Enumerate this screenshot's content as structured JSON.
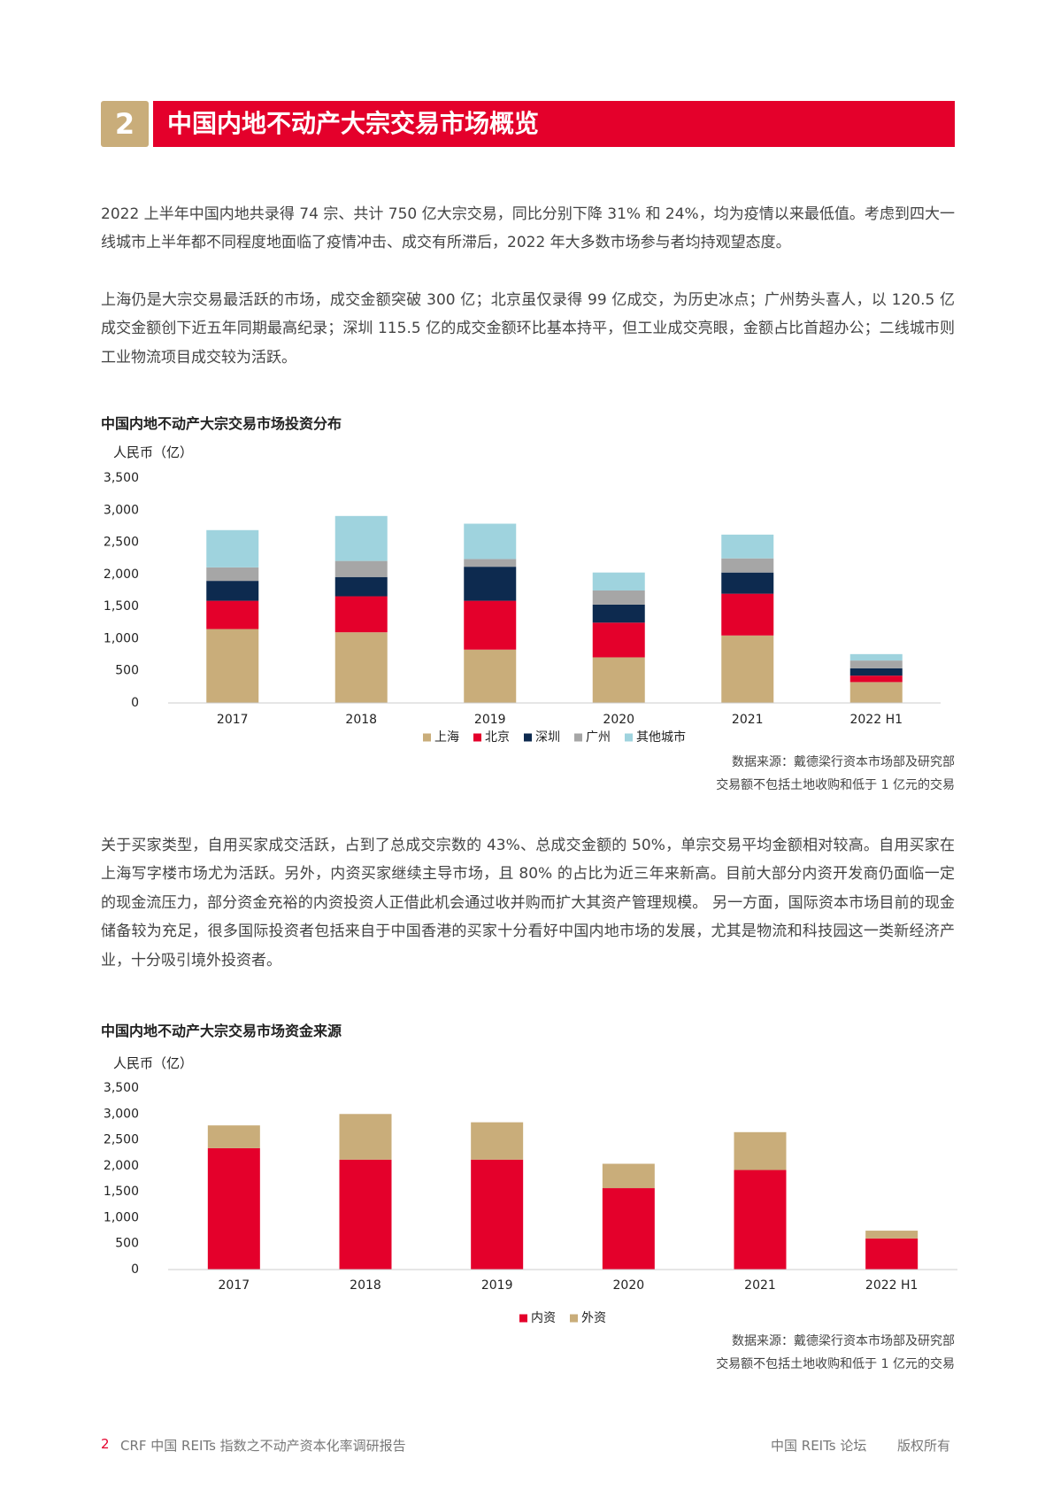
{
  "header": {
    "number": "2",
    "title": "中国内地不动产大宗交易市场概览"
  },
  "paragraphs": [
    "2022 上半年中国内地共录得 74 宗、共计 750 亿大宗交易，同比分别下降 31% 和 24%，均为疫情以来最低值。考虑到四大一线城市上半年都不同程度地面临了疫情冲击、成交有所滞后，2022 年大多数市场参与者均持观望态度。",
    "上海仍是大宗交易最活跃的市场，成交金额突破 300 亿；北京虽仅录得 99 亿成交，为历史冰点；广州势头喜人，以 120.5 亿成交金额创下近五年同期最高纪录；深圳 115.5 亿的成交金额环比基本持平，但工业成交亮眼，金额占比首超办公；二线城市则工业物流项目成交较为活跃。",
    "关于买家类型，自用买家成交活跃，占到了总成交宗数的 43%、总成交金额的 50%，单宗交易平均金额相对较高。自用买家在上海写字楼市场尤为活跃。另外，内资买家继续主导市场，且 80% 的占比为近三年来新高。目前大部分内资开发商仍面临一定的现金流压力，部分资金充裕的内资投资人正借此机会通过收并购而扩大其资产管理规模。 另一方面，国际资本市场目前的现金储备较为充足，很多国际投资者包括来自于中国香港的买家十分看好中国内地市场的发展，尤其是物流和科技园这一类新经济产业，十分吸引境外投资者。"
  ],
  "chart_data": [
    {
      "type": "bar",
      "stacked": true,
      "title": "中国内地不动产大宗交易市场投资分布",
      "y_label": "人民币（亿）",
      "categories": [
        "2017",
        "2018",
        "2019",
        "2020",
        "2021",
        "2022 H1"
      ],
      "series": [
        {
          "name": "上海",
          "color": "#c9ad7a",
          "values": [
            1150,
            1100,
            830,
            710,
            1050,
            325
          ]
        },
        {
          "name": "北京",
          "color": "#e4002b",
          "values": [
            440,
            560,
            760,
            540,
            650,
            100
          ]
        },
        {
          "name": "深圳",
          "color": "#0d2a4f",
          "values": [
            310,
            300,
            530,
            280,
            330,
            115
          ]
        },
        {
          "name": "广州",
          "color": "#a6a6a6",
          "values": [
            210,
            250,
            120,
            220,
            220,
            120
          ]
        },
        {
          "name": "其他城市",
          "color": "#9fd3de",
          "values": [
            580,
            700,
            550,
            280,
            370,
            100
          ]
        }
      ],
      "ylim": [
        0,
        3500
      ],
      "yticks": [
        0,
        500,
        {
          "value": 1000,
          "label": "1,000"
        },
        {
          "value": 1500,
          "label": "1,500"
        },
        {
          "value": 2000,
          "label": "2,000"
        },
        {
          "value": 2500,
          "label": "2,500"
        },
        {
          "value": 3000,
          "label": "3,000"
        },
        {
          "value": 3500,
          "label": "3,500"
        }
      ],
      "grid": false,
      "notes": [
        "数据来源：戴德梁行资本市场部及研究部",
        "交易额不包括土地收购和低于 1 亿元的交易"
      ]
    },
    {
      "type": "bar",
      "stacked": true,
      "title": "中国内地不动产大宗交易市场资金来源",
      "y_label": "人民币（亿）",
      "categories": [
        "2017",
        "2018",
        "2019",
        "2020",
        "2021",
        "2022 H1"
      ],
      "series": [
        {
          "name": "内资",
          "color": "#e4002b",
          "values": [
            2340,
            2120,
            2120,
            1570,
            1920,
            600
          ]
        },
        {
          "name": "外资",
          "color": "#c9ad7a",
          "values": [
            440,
            880,
            720,
            470,
            730,
            150
          ]
        }
      ],
      "ylim": [
        0,
        3500
      ],
      "yticks": [
        0,
        500,
        {
          "value": 1000,
          "label": "1,000"
        },
        {
          "value": 1500,
          "label": "1,500"
        },
        {
          "value": 2000,
          "label": "2,000"
        },
        {
          "value": 2500,
          "label": "2,500"
        },
        {
          "value": 3000,
          "label": "3,000"
        },
        {
          "value": 3500,
          "label": "3,500"
        }
      ],
      "grid": false,
      "notes": [
        "数据来源：戴德梁行资本市场部及研究部",
        "交易额不包括土地收购和低于 1 亿元的交易"
      ]
    }
  ],
  "footer": {
    "page": "2",
    "report": "CRF 中国 REITs 指数之不动产资本化率调研报告",
    "site": "中国 REITs 论坛",
    "rights": "版权所有"
  }
}
